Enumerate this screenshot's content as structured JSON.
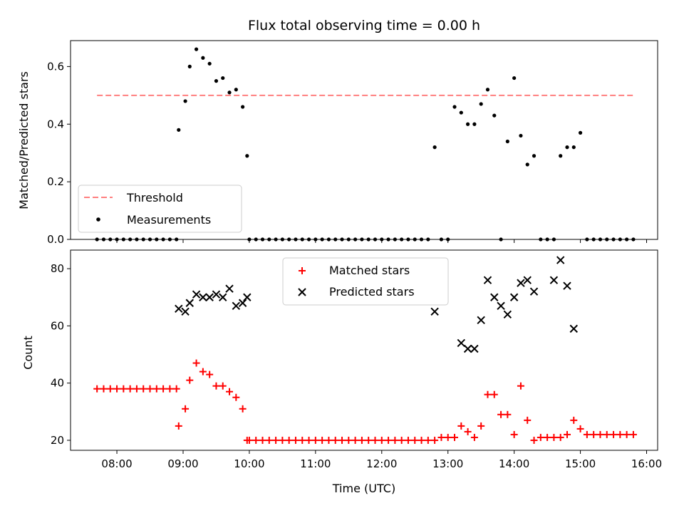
{
  "chart_data": [
    {
      "type": "scatter",
      "title": "Flux total observing time = 0.00 h",
      "xlabel": "",
      "ylabel": "Matched/Predicted stars",
      "xlim": [
        "07:18",
        "16:10"
      ],
      "ylim": [
        0,
        0.69
      ],
      "yticks": [
        0.0,
        0.2,
        0.4,
        0.6
      ],
      "yticklabels": [
        "0.0",
        "0.2",
        "0.4",
        "0.6"
      ],
      "legend": "lower-left",
      "grid": false,
      "colors": {
        "threshold": "#ff7f7f",
        "measurements": "#000000"
      },
      "series": [
        {
          "name": "Threshold",
          "kind": "dashed-line",
          "x": [
            "07:42",
            "15:48"
          ],
          "y": [
            0.5,
            0.5
          ]
        },
        {
          "name": "Measurements",
          "kind": "dot",
          "x": [
            "07:42",
            "07:48",
            "07:54",
            "08:00",
            "08:06",
            "08:12",
            "08:18",
            "08:24",
            "08:30",
            "08:36",
            "08:42",
            "08:48",
            "08:54",
            "08:56",
            "09:02",
            "09:06",
            "09:12",
            "09:18",
            "09:24",
            "09:30",
            "09:36",
            "09:42",
            "09:48",
            "09:54",
            "09:58",
            "10:00",
            "10:06",
            "10:12",
            "10:18",
            "10:24",
            "10:30",
            "10:36",
            "10:42",
            "10:48",
            "10:54",
            "11:00",
            "11:06",
            "11:12",
            "11:18",
            "11:24",
            "11:30",
            "11:36",
            "11:42",
            "11:48",
            "11:54",
            "12:00",
            "12:06",
            "12:12",
            "12:18",
            "12:24",
            "12:30",
            "12:36",
            "12:42",
            "12:48",
            "12:54",
            "13:00",
            "13:06",
            "13:12",
            "13:18",
            "13:24",
            "13:30",
            "13:36",
            "13:42",
            "13:48",
            "13:54",
            "14:00",
            "14:06",
            "14:12",
            "14:18",
            "14:24",
            "14:30",
            "14:36",
            "14:42",
            "14:48",
            "14:54",
            "15:00",
            "15:06",
            "15:12",
            "15:18",
            "15:24",
            "15:30",
            "15:36",
            "15:42",
            "15:48"
          ],
          "y": [
            0,
            0,
            0,
            0,
            0,
            0,
            0,
            0,
            0,
            0,
            0,
            0,
            0,
            0.38,
            0.48,
            0.6,
            0.66,
            0.63,
            0.61,
            0.55,
            0.56,
            0.51,
            0.52,
            0.46,
            0.29,
            0,
            0,
            0,
            0,
            0,
            0,
            0,
            0,
            0,
            0,
            0,
            0,
            0,
            0,
            0,
            0,
            0,
            0,
            0,
            0,
            0,
            0,
            0,
            0,
            0,
            0,
            0,
            0,
            0.32,
            0,
            0,
            0.46,
            0.44,
            0.4,
            0.4,
            0.47,
            0.52,
            0.43,
            0,
            0.34,
            0.56,
            0.36,
            0.26,
            0.29,
            0,
            0,
            0,
            0.29,
            0.32,
            0.32,
            0.37,
            0,
            0,
            0,
            0,
            0,
            0,
            0,
            0
          ]
        }
      ]
    },
    {
      "type": "scatter",
      "title": "",
      "xlabel": "Time (UTC)",
      "ylabel": "Count",
      "xlim": [
        "07:18",
        "16:10"
      ],
      "ylim": [
        16.5,
        86.5
      ],
      "xticks": [
        "08:00",
        "09:00",
        "10:00",
        "11:00",
        "12:00",
        "13:00",
        "14:00",
        "15:00",
        "16:00"
      ],
      "xticklabels": [
        "08:00",
        "09:00",
        "10:00",
        "11:00",
        "12:00",
        "13:00",
        "14:00",
        "15:00",
        "16:00"
      ],
      "yticks": [
        20,
        40,
        60,
        80
      ],
      "yticklabels": [
        "20",
        "40",
        "60",
        "80"
      ],
      "legend": "upper-center",
      "grid": false,
      "colors": {
        "matched": "#ff0000",
        "predicted": "#000000"
      },
      "series": [
        {
          "name": "Matched stars",
          "kind": "plus",
          "x": [
            "07:42",
            "07:48",
            "07:54",
            "08:00",
            "08:06",
            "08:12",
            "08:18",
            "08:24",
            "08:30",
            "08:36",
            "08:42",
            "08:48",
            "08:54",
            "08:56",
            "09:02",
            "09:06",
            "09:12",
            "09:18",
            "09:24",
            "09:30",
            "09:36",
            "09:42",
            "09:48",
            "09:54",
            "09:58",
            "10:00",
            "10:06",
            "10:12",
            "10:18",
            "10:24",
            "10:30",
            "10:36",
            "10:42",
            "10:48",
            "10:54",
            "11:00",
            "11:06",
            "11:12",
            "11:18",
            "11:24",
            "11:30",
            "11:36",
            "11:42",
            "11:48",
            "11:54",
            "12:00",
            "12:06",
            "12:12",
            "12:18",
            "12:24",
            "12:30",
            "12:36",
            "12:42",
            "12:48",
            "12:54",
            "13:00",
            "13:06",
            "13:12",
            "13:18",
            "13:24",
            "13:30",
            "13:36",
            "13:42",
            "13:48",
            "13:54",
            "14:00",
            "14:06",
            "14:12",
            "14:18",
            "14:24",
            "14:30",
            "14:36",
            "14:42",
            "14:48",
            "14:54",
            "15:00",
            "15:06",
            "15:12",
            "15:18",
            "15:24",
            "15:30",
            "15:36",
            "15:42",
            "15:48"
          ],
          "y": [
            38,
            38,
            38,
            38,
            38,
            38,
            38,
            38,
            38,
            38,
            38,
            38,
            38,
            25,
            31,
            41,
            47,
            44,
            43,
            39,
            39,
            37,
            35,
            31,
            20,
            20,
            20,
            20,
            20,
            20,
            20,
            20,
            20,
            20,
            20,
            20,
            20,
            20,
            20,
            20,
            20,
            20,
            20,
            20,
            20,
            20,
            20,
            20,
            20,
            20,
            20,
            20,
            20,
            20,
            21,
            21,
            21,
            25,
            23,
            21,
            25,
            36,
            36,
            29,
            29,
            22,
            39,
            27,
            20,
            21,
            21,
            21,
            21,
            22,
            27,
            24,
            22,
            22,
            22,
            22,
            22,
            22,
            22,
            22
          ]
        },
        {
          "name": "Predicted stars",
          "kind": "x",
          "x": [
            "08:56",
            "09:02",
            "09:06",
            "09:12",
            "09:18",
            "09:24",
            "09:30",
            "09:36",
            "09:42",
            "09:48",
            "09:54",
            "09:58",
            "12:48",
            "13:12",
            "13:18",
            "13:24",
            "13:30",
            "13:36",
            "13:42",
            "13:48",
            "13:54",
            "14:00",
            "14:06",
            "14:12",
            "14:18",
            "14:36",
            "14:42",
            "14:48",
            "14:54"
          ],
          "y": [
            66,
            65,
            68,
            71,
            70,
            70,
            71,
            70,
            73,
            67,
            68,
            70,
            65,
            54,
            52,
            52,
            62,
            76,
            70,
            67,
            64,
            70,
            75,
            76,
            72,
            76,
            83,
            74,
            59
          ]
        }
      ]
    }
  ]
}
